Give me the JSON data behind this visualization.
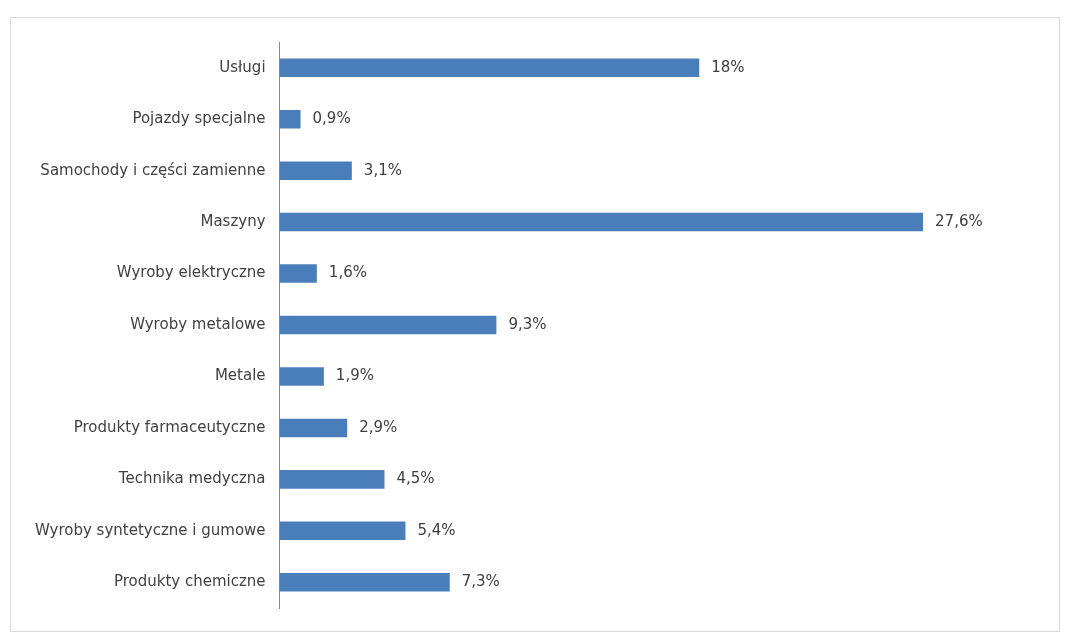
{
  "chart_data": {
    "type": "bar",
    "orientation": "horizontal",
    "categories": [
      "Usługi",
      "Pojazdy specjalne",
      "Samochody i części zamienne",
      "Maszyny",
      "Wyroby elektryczne",
      "Wyroby metalowe",
      "Metale",
      "Produkty farmaceutyczne",
      "Technika medyczna",
      "Wyroby syntetyczne i gumowe",
      "Produkty chemiczne"
    ],
    "values": [
      18,
      0.9,
      3.1,
      27.6,
      1.6,
      9.3,
      1.9,
      2.9,
      4.5,
      5.4,
      7.3
    ],
    "value_labels": [
      "18%",
      "0,9%",
      "3,1%",
      "27,6%",
      "1,6%",
      "9,3%",
      "1,9%",
      "2,9%",
      "4,5%",
      "5,4%",
      "7,3%"
    ],
    "color": "#4a7ebb",
    "grid": false,
    "legend": false
  }
}
